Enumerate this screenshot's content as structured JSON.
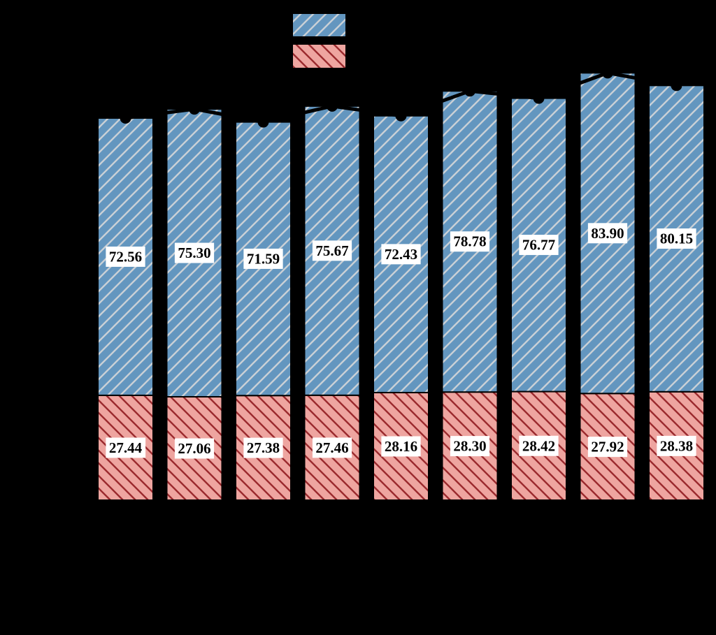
{
  "figure": {
    "kind": "stacked-bar-chart-with-total-line",
    "background_color": "#000000",
    "axis_text_visible": false
  },
  "colors": {
    "blue_fill": "#6396BF",
    "blue_hatch": "#C9D0D6",
    "red_fill": "#EEA5A0",
    "red_hatch": "#9B2A2E",
    "bar_edge": "#000000",
    "total_line": "#000000",
    "label_text": "#000000",
    "label_bg": "#FFFFFF"
  },
  "legend": {
    "entries": [
      {
        "swatch": "blue-forward-slash-hatch",
        "label": ""
      },
      {
        "swatch": "red-back-slash-hatch",
        "label": ""
      }
    ]
  },
  "chart_data": {
    "type": "bar",
    "stacked": true,
    "n_bars": 9,
    "categories": [
      "",
      "",
      "",
      "",
      "",
      "",
      "",
      "",
      ""
    ],
    "series": [
      {
        "name": "red_bottom_segment",
        "hatch": "\\",
        "values": [
          27.44,
          27.06,
          27.38,
          27.46,
          28.16,
          28.3,
          28.42,
          27.92,
          28.38
        ],
        "labels": [
          "27.44",
          "27.06",
          "27.38",
          "27.46",
          "28.16",
          "28.30",
          "28.42",
          "27.92",
          "28.38"
        ]
      },
      {
        "name": "blue_top_segment",
        "hatch": "/",
        "values": [
          72.56,
          75.3,
          71.59,
          75.67,
          72.43,
          78.78,
          76.77,
          83.9,
          80.15
        ],
        "labels": [
          "72.56",
          "75.30",
          "71.59",
          "75.67",
          "72.43",
          "78.78",
          "76.77",
          "83.90",
          "80.15"
        ]
      }
    ],
    "total_line": {
      "name": "total_overlay_line",
      "marker": "circle",
      "values": [
        100.0,
        102.36,
        98.97,
        103.13,
        100.59,
        107.08,
        105.19,
        111.82,
        108.53
      ]
    },
    "value_labels_visible": true,
    "ylim": [
      0,
      131
    ]
  }
}
